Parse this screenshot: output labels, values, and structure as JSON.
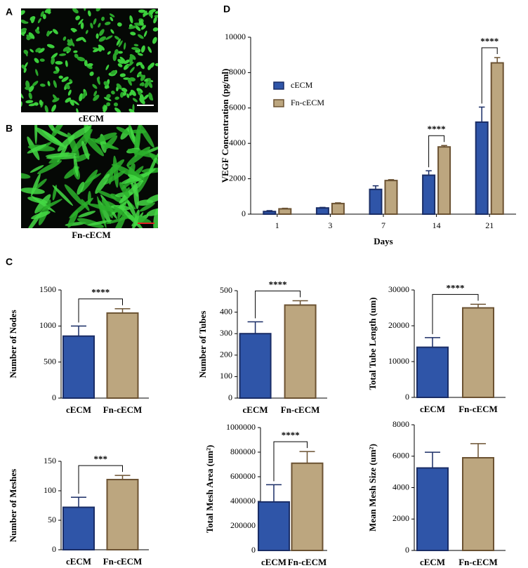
{
  "panel_labels": [
    "A",
    "B",
    "C",
    "D"
  ],
  "images": [
    {
      "caption": "cECM"
    },
    {
      "caption": "Fn-cECM"
    }
  ],
  "chart_data": [
    {
      "type": "grouped-bar",
      "ylabel": "VEGF Concentration (pg/ml)",
      "xlabel": "Days",
      "categories": [
        "1",
        "3",
        "7",
        "14",
        "21"
      ],
      "series": [
        {
          "name": "cECM",
          "color": "#2f55a8",
          "values": [
            150,
            350,
            1400,
            2200,
            5200
          ],
          "errors": [
            50,
            30,
            200,
            250,
            850
          ]
        },
        {
          "name": "Fn-cECM",
          "color": "#bca67f",
          "values": [
            300,
            600,
            1900,
            3800,
            8550
          ],
          "errors": [
            30,
            40,
            50,
            80,
            300
          ]
        }
      ],
      "significance": [
        null,
        null,
        null,
        "****",
        "****"
      ],
      "ylim": [
        0,
        10000
      ],
      "yticks": [
        0,
        2000,
        4000,
        6000,
        8000,
        10000
      ],
      "legend": "upper-left"
    },
    {
      "type": "bar",
      "ylabel": "Number of Nodes",
      "categories": [
        "cECM",
        "Fn-cECM"
      ],
      "colors": [
        "#2f55a8",
        "#bca67f"
      ],
      "values": [
        860,
        1180
      ],
      "errors": [
        140,
        60
      ],
      "significance": "****",
      "ylim": [
        0,
        1500
      ],
      "yticks": [
        0,
        500,
        1000,
        1500
      ]
    },
    {
      "type": "bar",
      "ylabel": "Number of Tubes",
      "categories": [
        "cECM",
        "Fn-cECM"
      ],
      "colors": [
        "#2f55a8",
        "#bca67f"
      ],
      "values": [
        300,
        433
      ],
      "errors": [
        55,
        20
      ],
      "significance": "****",
      "ylim": [
        0,
        500
      ],
      "yticks": [
        0,
        100,
        200,
        300,
        400,
        500
      ]
    },
    {
      "type": "bar",
      "ylabel": "Total Tube Length (um)",
      "categories": [
        "cECM",
        "Fn-cECM"
      ],
      "colors": [
        "#2f55a8",
        "#bca67f"
      ],
      "values": [
        14000,
        25000
      ],
      "errors": [
        2700,
        1000
      ],
      "significance": "****",
      "ylim": [
        0,
        30000
      ],
      "yticks": [
        0,
        10000,
        20000,
        30000
      ]
    },
    {
      "type": "bar",
      "ylabel": "Number of Meshes",
      "categories": [
        "cECM",
        "Fn-cECM"
      ],
      "colors": [
        "#2f55a8",
        "#bca67f"
      ],
      "values": [
        72,
        119
      ],
      "errors": [
        17,
        7
      ],
      "significance": "***",
      "ylim": [
        0,
        150
      ],
      "yticks": [
        0,
        50,
        100,
        150
      ]
    },
    {
      "type": "bar",
      "ylabel": "Total Mesh Area (um²)",
      "categories": [
        "cECM",
        "Fn-cECM"
      ],
      "colors": [
        "#2f55a8",
        "#bca67f"
      ],
      "values": [
        395000,
        710000
      ],
      "errors": [
        140000,
        95000
      ],
      "significance": "****",
      "ylim": [
        0,
        1000000
      ],
      "yticks": [
        0,
        200000,
        400000,
        600000,
        800000,
        1000000
      ]
    },
    {
      "type": "bar",
      "ylabel": "Mean Mesh Size (um²)",
      "categories": [
        "cECM",
        "Fn-cECM"
      ],
      "colors": [
        "#2f55a8",
        "#bca67f"
      ],
      "values": [
        5250,
        5900
      ],
      "errors": [
        1000,
        900
      ],
      "ylim": [
        0,
        8000
      ],
      "yticks": [
        0,
        2000,
        4000,
        6000,
        8000
      ]
    }
  ]
}
